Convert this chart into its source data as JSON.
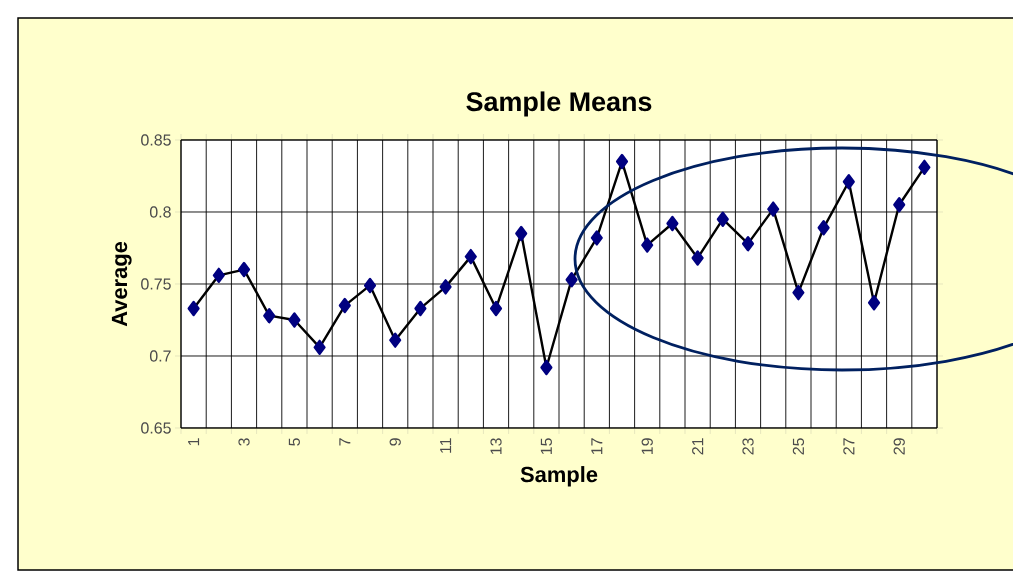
{
  "chart_data": {
    "type": "line",
    "title": "Sample Means",
    "xlabel": "Sample",
    "ylabel": "Average",
    "categories": [
      "1",
      null,
      "3",
      null,
      "5",
      null,
      "7",
      null,
      "9",
      null,
      "11",
      null,
      "13",
      null,
      "15",
      null,
      "17",
      null,
      "19",
      null,
      "21",
      null,
      "23",
      null,
      "25",
      null,
      "27",
      null,
      "29",
      null
    ],
    "series": [
      {
        "color": "#000080",
        "values": [
          0.733,
          0.756,
          0.76,
          0.728,
          0.725,
          0.706,
          0.735,
          0.749,
          0.711,
          0.733,
          0.748,
          0.769,
          0.733,
          0.785,
          0.692,
          0.753,
          0.782,
          0.835,
          0.777,
          0.792,
          0.768,
          0.795,
          0.778,
          0.802,
          0.744,
          0.789,
          0.821,
          0.737,
          0.805,
          0.831
        ]
      }
    ],
    "ylim": [
      0.65,
      0.85
    ],
    "yticks": [
      0.65,
      0.7,
      0.75,
      0.8,
      0.85
    ],
    "grid": true,
    "marker": "diamond",
    "line_style": "solid"
  }
}
